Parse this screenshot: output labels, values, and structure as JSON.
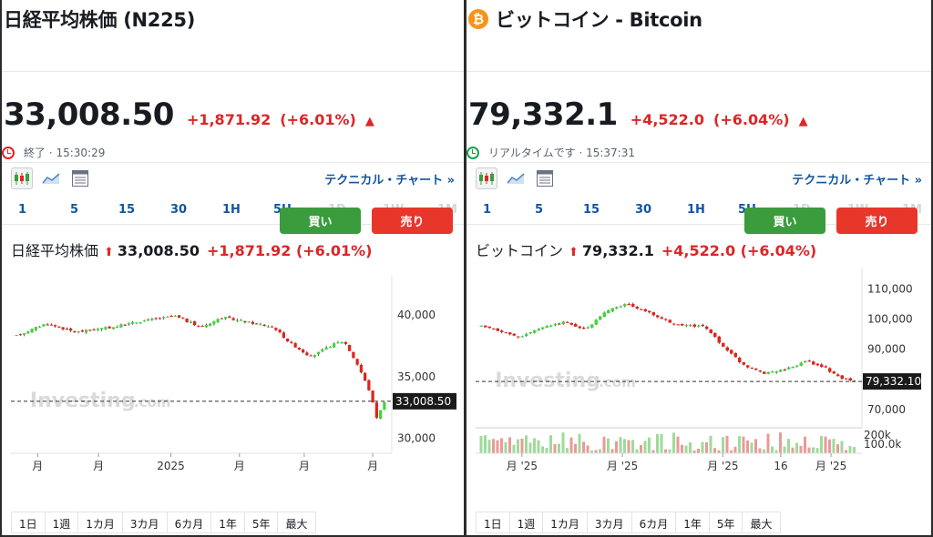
{
  "panels": [
    {
      "title": "日経平均株価 (N225)",
      "logo": "",
      "price": "33,008.50",
      "change": "+1,871.92",
      "change_pct": "(+6.01%)",
      "status": "終了 · 15:30:29",
      "status_color": "#dc2626",
      "tech_link": "テクニカル・チャート »",
      "intervals": [
        "1",
        "5",
        "15",
        "30",
        "1H",
        "5H",
        "1D",
        "1W",
        "1M"
      ],
      "buy_label": "買い",
      "sell_label": "売り",
      "chart_name": "日経平均株価",
      "chart_price": "33,008.50",
      "chart_change": "+1,871.92 (+6.01%)",
      "watermark": "Investing",
      "watermark_suffix": ".com",
      "last_label": "33,008.50",
      "ranges": [
        "1日",
        "1週",
        "1カ月",
        "3カ月",
        "6カ月",
        "1年",
        "5年",
        "最大"
      ]
    },
    {
      "title": "ビットコイン - Bitcoin",
      "logo": "₿",
      "price": "79,332.1",
      "change": "+4,522.0",
      "change_pct": "(+6.04%)",
      "status": "リアルタイムです · 15:37:31",
      "status_color": "#16a34a",
      "tech_link": "テクニカル・チャート »",
      "intervals": [
        "1",
        "5",
        "15",
        "30",
        "1H",
        "5H",
        "1D",
        "1W",
        "1M"
      ],
      "buy_label": "買い",
      "sell_label": "売り",
      "chart_name": "ビットコイン",
      "chart_price": "79,332.1",
      "chart_change": "+4,522.0 (+6.04%)",
      "watermark": "Investing",
      "watermark_suffix": ".com",
      "last_label": "79,332.10",
      "ranges": [
        "1日",
        "1週",
        "1カ月",
        "3カ月",
        "6カ月",
        "1年",
        "5年",
        "最大"
      ]
    }
  ],
  "chart_data": [
    {
      "type": "candlestick",
      "ylim": [
        28800,
        42500
      ],
      "y_ticks": [
        "40,000",
        "35,000",
        "30,000"
      ],
      "y_tick_values": [
        40000,
        35000,
        30000
      ],
      "x_ticks": [
        "月",
        "月",
        "2025",
        "月",
        "月",
        "月"
      ],
      "x_tick_positions": [
        0.07,
        0.23,
        0.42,
        0.6,
        0.77,
        0.95
      ],
      "last_value": 33008.5,
      "keyframes": [
        [
          0,
          38300
        ],
        [
          0.08,
          39300
        ],
        [
          0.16,
          38600
        ],
        [
          0.26,
          39000
        ],
        [
          0.34,
          39500
        ],
        [
          0.43,
          39900
        ],
        [
          0.5,
          39000
        ],
        [
          0.56,
          39800
        ],
        [
          0.63,
          39400
        ],
        [
          0.7,
          39000
        ],
        [
          0.74,
          37800
        ],
        [
          0.8,
          36600
        ],
        [
          0.86,
          37600
        ],
        [
          0.89,
          37900
        ],
        [
          0.93,
          35800
        ],
        [
          0.96,
          33800
        ],
        [
          0.98,
          31600
        ],
        [
          1.0,
          33008.5
        ]
      ]
    },
    {
      "type": "candlestick",
      "ylim": [
        64000,
        114000
      ],
      "y_ticks": [
        "110,000",
        "100,000",
        "90,000",
        "70,000"
      ],
      "y_tick_values": [
        110000,
        100000,
        90000,
        70000
      ],
      "volume_ticks": [
        "200k",
        "100.0k"
      ],
      "x_ticks": [
        "月 '25",
        "月 '25",
        "月 '25",
        "16",
        "月 '25"
      ],
      "x_tick_positions": [
        0.12,
        0.38,
        0.64,
        0.79,
        0.92
      ],
      "last_value": 79332.1,
      "keyframes": [
        [
          0,
          97500
        ],
        [
          0.05,
          96000
        ],
        [
          0.1,
          94000
        ],
        [
          0.16,
          97000
        ],
        [
          0.22,
          99000
        ],
        [
          0.28,
          96500
        ],
        [
          0.34,
          103000
        ],
        [
          0.39,
          105000
        ],
        [
          0.45,
          102000
        ],
        [
          0.52,
          98000
        ],
        [
          0.6,
          97500
        ],
        [
          0.64,
          92000
        ],
        [
          0.7,
          85000
        ],
        [
          0.76,
          82000
        ],
        [
          0.82,
          83500
        ],
        [
          0.87,
          86000
        ],
        [
          0.92,
          84000
        ],
        [
          0.96,
          80500
        ],
        [
          1.0,
          79332
        ]
      ]
    }
  ]
}
